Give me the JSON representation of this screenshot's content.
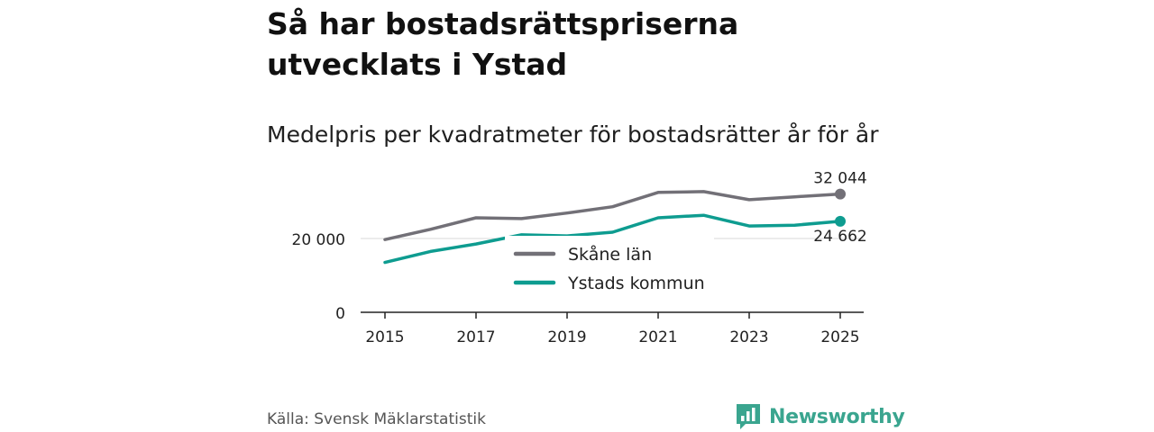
{
  "chart_data": {
    "type": "line",
    "title": "Så har bostadsrättspriserna utvecklats i Ystad",
    "subtitle": "Medelpris per kvadratmeter för bostadsrätter år för år",
    "x": [
      2015,
      2016,
      2017,
      2018,
      2019,
      2020,
      2021,
      2022,
      2023,
      2024,
      2025
    ],
    "xticks": [
      "2015",
      "2017",
      "2019",
      "2021",
      "2023",
      "2025"
    ],
    "xtick_values": [
      2015,
      2017,
      2019,
      2021,
      2023,
      2025
    ],
    "yticks": [
      "0",
      "20 000"
    ],
    "ytick_values": [
      0,
      20000
    ],
    "ylim": [
      0,
      40000
    ],
    "xlim": [
      2015,
      2025
    ],
    "series": [
      {
        "name": "Skåne län",
        "color": "#727077",
        "values": [
          19700,
          22500,
          25600,
          25400,
          26900,
          28600,
          32500,
          32700,
          30500,
          31300,
          32044
        ],
        "end_label": "32 044"
      },
      {
        "name": "Ystads kommun",
        "color": "#0e9c90",
        "values": [
          13500,
          16500,
          18500,
          21000,
          20700,
          21700,
          25600,
          26300,
          23400,
          23600,
          24662
        ],
        "end_label": "24 662"
      }
    ],
    "legend_position": "center",
    "grid": true
  },
  "footer": {
    "source": "Källa: Svensk Mäklarstatistik",
    "brand": "Newsworthy"
  },
  "colors": {
    "brand": "#3aa58f",
    "axis": "#222222",
    "grid": "#d9d9d9"
  }
}
